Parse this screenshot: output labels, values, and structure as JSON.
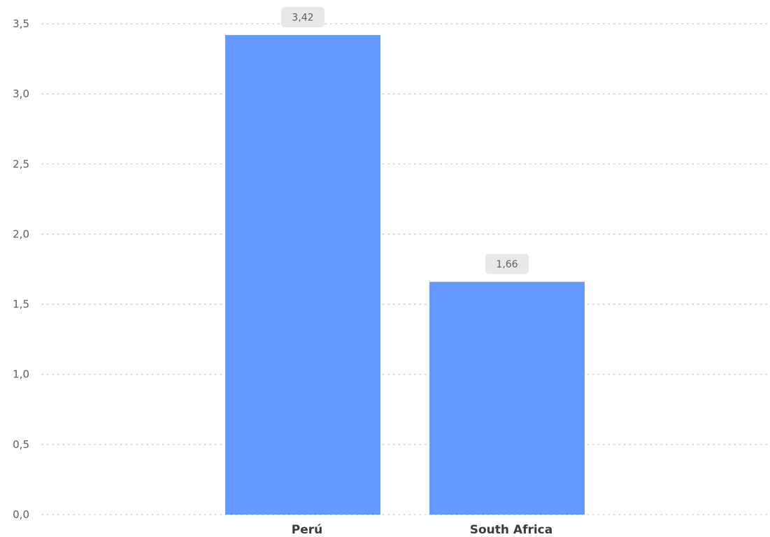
{
  "chart_data": {
    "type": "bar",
    "categories": [
      "Perú",
      "South Africa"
    ],
    "values": [
      3.42,
      1.66
    ],
    "data_labels": [
      "3,42",
      "1,66"
    ],
    "title": "",
    "xlabel": "",
    "ylabel": "",
    "ylim": [
      0,
      3.5
    ],
    "yticks": [
      0,
      0.5,
      1.0,
      1.5,
      2.0,
      2.5,
      3.0,
      3.5
    ],
    "ytick_labels": [
      "0,0",
      "0,5",
      "1,0",
      "1,5",
      "2,0",
      "2,5",
      "3,0",
      "3,5"
    ],
    "grid": true,
    "grid_style": "dotted",
    "legend": "none",
    "colors": {
      "bar": "#6699ff",
      "data_label_bg": "#e8e8e8",
      "grid": "#c8c6c4",
      "tick_text": "#605e5c",
      "category_text": "#3b3a39"
    }
  }
}
